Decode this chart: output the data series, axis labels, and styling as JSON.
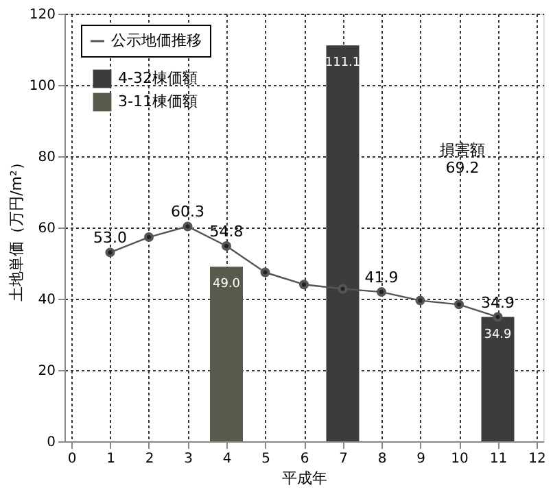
{
  "chart_data": {
    "type": "line",
    "xlabel": "平成年",
    "ylabel": "土地単価（万円/m²）",
    "xlim": [
      0,
      12
    ],
    "xticks": [
      0,
      1,
      2,
      3,
      4,
      5,
      6,
      7,
      8,
      9,
      10,
      11,
      12
    ],
    "ylim": [
      0,
      120
    ],
    "yticks": [
      0,
      20,
      40,
      60,
      80,
      100,
      120
    ],
    "grid": true,
    "legend": "top left",
    "marker": "circle",
    "series": [
      {
        "name": "公示地価推移",
        "color": "#555555",
        "x": [
          1,
          2,
          3,
          4,
          5,
          6,
          7,
          8,
          9,
          10,
          11
        ],
        "values": [
          53.0,
          57.3,
          60.3,
          54.8,
          47.4,
          44.0,
          42.8,
          41.9,
          39.5,
          38.4,
          34.9
        ],
        "value_labels": [
          "53.0",
          null,
          "60.3",
          "54.8",
          null,
          null,
          null,
          "41.9",
          null,
          null,
          "34.9"
        ]
      },
      {
        "name": "4-32棟価額",
        "type": "bar",
        "color": "#3c3c3c",
        "x": [
          7,
          11
        ],
        "values": [
          111.1,
          34.9
        ],
        "value_labels": [
          "111.1",
          "34.9"
        ]
      },
      {
        "name": "3-11棟価額",
        "type": "bar",
        "color": "#5a5a4c",
        "x": [
          4
        ],
        "values": [
          49.0
        ],
        "value_labels": [
          "49.0"
        ]
      }
    ],
    "annotations": [
      "損害額\n69.2"
    ]
  }
}
